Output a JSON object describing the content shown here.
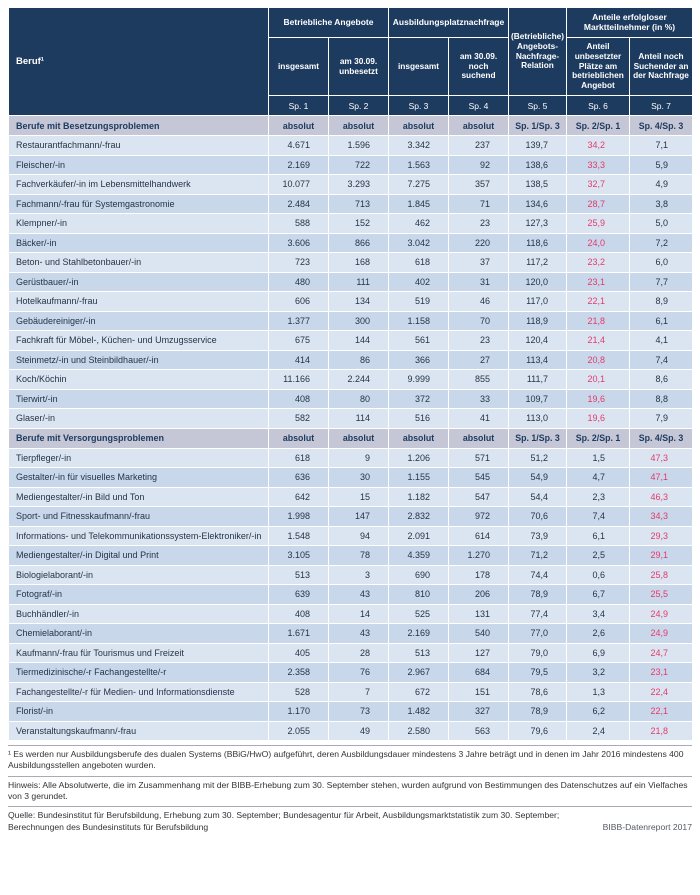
{
  "colors": {
    "header_bg": "#1d3a5f",
    "header_text": "#ffffff",
    "section_bg": "#c5c6d6",
    "row_light": "#dbe5f1",
    "row_dark": "#c9d7ea",
    "highlight": "#e23a6c"
  },
  "table": {
    "header": {
      "beruf": "Beruf¹",
      "group_offers": "Betriebliche Angebote",
      "group_demand": "Ausbildungsplatznachfrage",
      "relation": "(Betriebliche) Angebots-Nachfrage-Relation",
      "group_shares": "Anteile erfolgloser Marktteilnehmer (in %)",
      "sub": [
        "insgesamt",
        "am 30.09. unbesetzt",
        "insgesamt",
        "am 30.09. noch suchend",
        "Anteil unbesetzter Plätze am betrieblichen Angebot",
        "Anteil noch Suchender an der Nachfrage"
      ],
      "sp": [
        "Sp. 1",
        "Sp. 2",
        "Sp. 3",
        "Sp. 4",
        "Sp. 5",
        "Sp. 6",
        "Sp. 7"
      ]
    },
    "sections": [
      {
        "title": "Berufe mit Besetzungsproblemen",
        "header_cells": [
          "absolut",
          "absolut",
          "absolut",
          "absolut",
          "Sp. 1/Sp. 3",
          "Sp. 2/Sp. 1",
          "Sp. 4/Sp. 3"
        ],
        "highlight_index": 5,
        "rows": [
          {
            "beruf": "Restaurantfachmann/-frau",
            "values": [
              "4.671",
              "1.596",
              "3.342",
              "237",
              "139,7",
              "34,2",
              "7,1"
            ]
          },
          {
            "beruf": "Fleischer/-in",
            "values": [
              "2.169",
              "722",
              "1.563",
              "92",
              "138,6",
              "33,3",
              "5,9"
            ]
          },
          {
            "beruf": "Fachverkäufer/-in im Lebensmittelhandwerk",
            "values": [
              "10.077",
              "3.293",
              "7.275",
              "357",
              "138,5",
              "32,7",
              "4,9"
            ]
          },
          {
            "beruf": "Fachmann/-frau für Systemgastronomie",
            "values": [
              "2.484",
              "713",
              "1.845",
              "71",
              "134,6",
              "28,7",
              "3,8"
            ]
          },
          {
            "beruf": "Klempner/-in",
            "values": [
              "588",
              "152",
              "462",
              "23",
              "127,3",
              "25,9",
              "5,0"
            ]
          },
          {
            "beruf": "Bäcker/-in",
            "values": [
              "3.606",
              "866",
              "3.042",
              "220",
              "118,6",
              "24,0",
              "7,2"
            ]
          },
          {
            "beruf": "Beton- und Stahlbetonbauer/-in",
            "values": [
              "723",
              "168",
              "618",
              "37",
              "117,2",
              "23,2",
              "6,0"
            ]
          },
          {
            "beruf": "Gerüstbauer/-in",
            "values": [
              "480",
              "111",
              "402",
              "31",
              "120,0",
              "23,1",
              "7,7"
            ]
          },
          {
            "beruf": "Hotelkaufmann/-frau",
            "values": [
              "606",
              "134",
              "519",
              "46",
              "117,0",
              "22,1",
              "8,9"
            ]
          },
          {
            "beruf": "Gebäudereiniger/-in",
            "values": [
              "1.377",
              "300",
              "1.158",
              "70",
              "118,9",
              "21,8",
              "6,1"
            ]
          },
          {
            "beruf": "Fachkraft für Möbel-, Küchen- und Umzugsservice",
            "values": [
              "675",
              "144",
              "561",
              "23",
              "120,4",
              "21,4",
              "4,1"
            ]
          },
          {
            "beruf": "Steinmetz/-in und Steinbildhauer/-in",
            "values": [
              "414",
              "86",
              "366",
              "27",
              "113,4",
              "20,8",
              "7,4"
            ]
          },
          {
            "beruf": "Koch/Köchin",
            "values": [
              "11.166",
              "2.244",
              "9.999",
              "855",
              "111,7",
              "20,1",
              "8,6"
            ]
          },
          {
            "beruf": "Tierwirt/-in",
            "values": [
              "408",
              "80",
              "372",
              "33",
              "109,7",
              "19,6",
              "8,8"
            ]
          },
          {
            "beruf": "Glaser/-in",
            "values": [
              "582",
              "114",
              "516",
              "41",
              "113,0",
              "19,6",
              "7,9"
            ]
          }
        ]
      },
      {
        "title": "Berufe mit Versorgungsproblemen",
        "header_cells": [
          "absolut",
          "absolut",
          "absolut",
          "absolut",
          "Sp. 1/Sp. 3",
          "Sp. 2/Sp. 1",
          "Sp. 4/Sp. 3"
        ],
        "highlight_index": 6,
        "rows": [
          {
            "beruf": "Tierpfleger/-in",
            "values": [
              "618",
              "9",
              "1.206",
              "571",
              "51,2",
              "1,5",
              "47,3"
            ]
          },
          {
            "beruf": "Gestalter/-in für visuelles Marketing",
            "values": [
              "636",
              "30",
              "1.155",
              "545",
              "54,9",
              "4,7",
              "47,1"
            ]
          },
          {
            "beruf": "Mediengestalter/-in Bild und Ton",
            "values": [
              "642",
              "15",
              "1.182",
              "547",
              "54,4",
              "2,3",
              "46,3"
            ]
          },
          {
            "beruf": "Sport- und Fitnesskaufmann/-frau",
            "values": [
              "1.998",
              "147",
              "2.832",
              "972",
              "70,6",
              "7,4",
              "34,3"
            ]
          },
          {
            "beruf": "Informations- und Telekommunikationssystem-Elektroniker/-in",
            "values": [
              "1.548",
              "94",
              "2.091",
              "614",
              "73,9",
              "6,1",
              "29,3"
            ]
          },
          {
            "beruf": "Mediengestalter/-in Digital und Print",
            "values": [
              "3.105",
              "78",
              "4.359",
              "1.270",
              "71,2",
              "2,5",
              "29,1"
            ]
          },
          {
            "beruf": "Biologielaborant/-in",
            "values": [
              "513",
              "3",
              "690",
              "178",
              "74,4",
              "0,6",
              "25,8"
            ]
          },
          {
            "beruf": "Fotograf/-in",
            "values": [
              "639",
              "43",
              "810",
              "206",
              "78,9",
              "6,7",
              "25,5"
            ]
          },
          {
            "beruf": "Buchhändler/-in",
            "values": [
              "408",
              "14",
              "525",
              "131",
              "77,4",
              "3,4",
              "24,9"
            ]
          },
          {
            "beruf": "Chemielaborant/-in",
            "values": [
              "1.671",
              "43",
              "2.169",
              "540",
              "77,0",
              "2,6",
              "24,9"
            ]
          },
          {
            "beruf": "Kaufmann/-frau für Tourismus und Freizeit",
            "values": [
              "405",
              "28",
              "513",
              "127",
              "79,0",
              "6,9",
              "24,7"
            ]
          },
          {
            "beruf": "Tiermedizinische/-r Fachangestellte/-r",
            "values": [
              "2.358",
              "76",
              "2.967",
              "684",
              "79,5",
              "3,2",
              "23,1"
            ]
          },
          {
            "beruf": "Fachangestellte/-r für Medien- und Informationsdienste",
            "values": [
              "528",
              "7",
              "672",
              "151",
              "78,6",
              "1,3",
              "22,4"
            ]
          },
          {
            "beruf": "Florist/-in",
            "values": [
              "1.170",
              "73",
              "1.482",
              "327",
              "78,9",
              "6,2",
              "22,1"
            ]
          },
          {
            "beruf": "Veranstaltungskaufmann/-frau",
            "values": [
              "2.055",
              "49",
              "2.580",
              "563",
              "79,6",
              "2,4",
              "21,8"
            ]
          }
        ]
      }
    ]
  },
  "footnotes": {
    "note1": "¹ Es werden nur Ausbildungsberufe des dualen Systems (BBiG/HwO) aufgeführt, deren Ausbildungsdauer mindestens 3 Jahre beträgt und in denen im Jahr 2016 mindestens 400 Ausbildungsstellen angeboten wurden.",
    "hinweis": "Hinweis: Alle Absolutwerte, die im Zusammenhang mit der BIBB-Erhebung zum 30. September stehen, wurden aufgrund von Bestimmungen des Datenschutzes auf ein Vielfaches von 3 gerundet.",
    "quelle": "Quelle: Bundesinstitut für Berufsbildung, Erhebung zum 30. September; Bundesagentur für Arbeit, Ausbildungsmarktstatistik zum 30. September;\nBerechnungen des Bundesinstituts für Berufsbildung",
    "report": "BIBB-Datenreport 2017"
  }
}
